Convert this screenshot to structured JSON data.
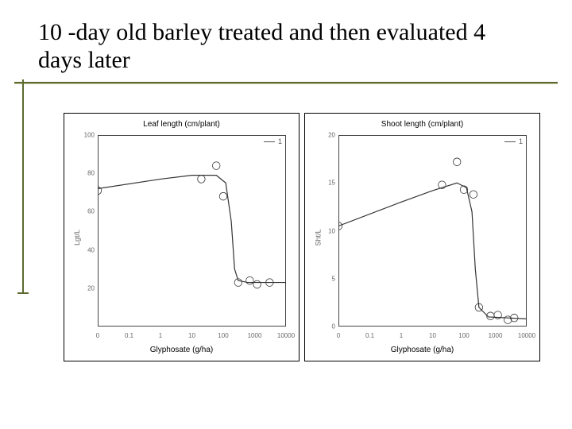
{
  "title": "10 -day old barley treated and then evaluated 4 days later",
  "rule_color": "#5b6b2f",
  "panels": [
    {
      "id": "leaf",
      "title": "Leaf length (cm/plant)",
      "xlabel": "Glyphosate (g/ha)",
      "ylabel": "Lgt/L",
      "legend_label": "1",
      "type": "dose-response",
      "xscale": "log10_plus_offset",
      "xlim": [
        0,
        10000
      ],
      "ylim": [
        0,
        100
      ],
      "yticks": [
        20,
        40,
        60,
        80,
        100
      ],
      "xticks": [
        0,
        0.1,
        1,
        10,
        100,
        1000,
        10000
      ],
      "line_color": "#333333",
      "line_width": 1.2,
      "marker_color": "#333333",
      "marker_style": "circle",
      "marker_size": 2,
      "background_color": "#ffffff",
      "border_color": "#666666",
      "curve": [
        {
          "x": 0,
          "y": 72
        },
        {
          "x": 1,
          "y": 77
        },
        {
          "x": 10,
          "y": 79
        },
        {
          "x": 60,
          "y": 79
        },
        {
          "x": 120,
          "y": 75
        },
        {
          "x": 180,
          "y": 55
        },
        {
          "x": 230,
          "y": 30
        },
        {
          "x": 300,
          "y": 24
        },
        {
          "x": 600,
          "y": 23
        },
        {
          "x": 10000,
          "y": 23
        }
      ],
      "points": [
        {
          "x": 0,
          "y": 71
        },
        {
          "x": 20,
          "y": 77
        },
        {
          "x": 60,
          "y": 84
        },
        {
          "x": 100,
          "y": 68
        },
        {
          "x": 300,
          "y": 23
        },
        {
          "x": 700,
          "y": 24
        },
        {
          "x": 1200,
          "y": 22
        },
        {
          "x": 3000,
          "y": 23
        }
      ]
    },
    {
      "id": "shoot",
      "title": "Shoot length (cm/plant)",
      "xlabel": "Glyphosate (g/ha)",
      "ylabel": "Sht/L",
      "legend_label": "1",
      "type": "dose-response",
      "xscale": "log10_plus_offset",
      "xlim": [
        0,
        10000
      ],
      "ylim": [
        0,
        20
      ],
      "yticks": [
        0,
        5,
        10,
        15,
        20
      ],
      "xticks": [
        0,
        0.1,
        1,
        10,
        100,
        1000,
        10000
      ],
      "line_color": "#333333",
      "line_width": 1.2,
      "marker_color": "#333333",
      "marker_style": "circle",
      "marker_size": 2,
      "background_color": "#ffffff",
      "border_color": "#666666",
      "curve": [
        {
          "x": 0,
          "y": 10.5
        },
        {
          "x": 1,
          "y": 13.0
        },
        {
          "x": 10,
          "y": 14.2
        },
        {
          "x": 60,
          "y": 15.0
        },
        {
          "x": 120,
          "y": 14.5
        },
        {
          "x": 180,
          "y": 12.0
        },
        {
          "x": 230,
          "y": 6.0
        },
        {
          "x": 300,
          "y": 2.0
        },
        {
          "x": 600,
          "y": 1.0
        },
        {
          "x": 10000,
          "y": 0.8
        }
      ],
      "points": [
        {
          "x": 0,
          "y": 10.5
        },
        {
          "x": 20,
          "y": 14.8
        },
        {
          "x": 60,
          "y": 17.2
        },
        {
          "x": 100,
          "y": 14.3
        },
        {
          "x": 200,
          "y": 13.8
        },
        {
          "x": 300,
          "y": 2.0
        },
        {
          "x": 700,
          "y": 1.1
        },
        {
          "x": 1200,
          "y": 1.2
        },
        {
          "x": 2500,
          "y": 0.7
        },
        {
          "x": 4000,
          "y": 0.9
        }
      ]
    }
  ]
}
